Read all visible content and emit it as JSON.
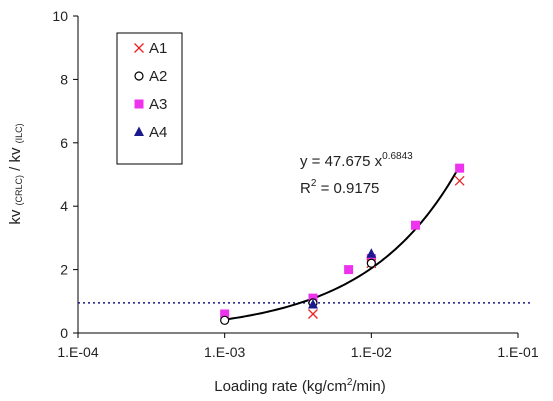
{
  "chart_data": {
    "type": "scatter",
    "x_scale": "log",
    "xlabel": "Loading rate (kg/cm2/min)",
    "xlabel_parts": {
      "main": "Loading rate (kg/cm",
      "sup": "2",
      "tail": "/min)"
    },
    "ylabel": "kv (CRLC) / kv (ILC)",
    "ylabel_parts": {
      "a": "kv ",
      "a_sub": "(CRLC)",
      "mid": " / kv ",
      "b_sub": "(ILC)"
    },
    "xlim": [
      0.0001,
      0.1
    ],
    "ylim": [
      0,
      10
    ],
    "x_ticks": [
      0.0001,
      0.001,
      0.01,
      0.1
    ],
    "x_tick_labels": [
      "1.E-04",
      "1.E-03",
      "1.E-02",
      "1.E-01"
    ],
    "y_ticks": [
      0,
      2,
      4,
      6,
      8,
      10
    ],
    "y_tick_labels": [
      "0",
      "2",
      "4",
      "6",
      "8",
      "10"
    ],
    "grid": false,
    "legend_position": "top-left",
    "series": [
      {
        "name": "A1",
        "marker": "x",
        "color": "#e8262a",
        "points": [
          [
            0.004,
            0.6
          ],
          [
            0.01,
            2.2
          ],
          [
            0.04,
            4.8
          ]
        ]
      },
      {
        "name": "A2",
        "marker": "circle",
        "color": "#000000",
        "points": [
          [
            0.001,
            0.4
          ],
          [
            0.004,
            0.95
          ],
          [
            0.01,
            2.2
          ]
        ]
      },
      {
        "name": "A3",
        "marker": "square",
        "color": "#ee33ee",
        "points": [
          [
            0.001,
            0.6
          ],
          [
            0.004,
            1.1
          ],
          [
            0.007,
            2.0
          ],
          [
            0.01,
            2.35
          ],
          [
            0.02,
            3.4
          ],
          [
            0.04,
            5.2
          ]
        ]
      },
      {
        "name": "A4",
        "marker": "triangle",
        "color": "#1a1a8c",
        "points": [
          [
            0.004,
            0.9
          ],
          [
            0.01,
            2.5
          ]
        ]
      }
    ],
    "trendline": {
      "type": "power",
      "coefficient": 47.675,
      "exponent": 0.6843,
      "x_range": [
        0.001,
        0.04
      ],
      "color": "#000000"
    },
    "reference_line": {
      "y": 0.95,
      "style": "dotted",
      "color": "#1a1a8c"
    },
    "annotations": {
      "equation_prefix": "y = 47.675 x",
      "equation_exponent": "0.6843",
      "r2_prefix": "R",
      "r2_sup": "2",
      "r2_value": " = 0.9175"
    }
  }
}
